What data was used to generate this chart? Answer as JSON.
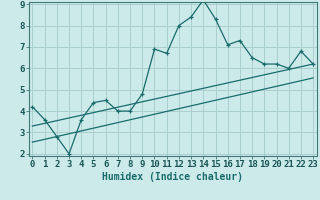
{
  "xlabel": "Humidex (Indice chaleur)",
  "bg_color": "#cceaea",
  "grid_color": "#aacece",
  "line_color": "#1a6b6b",
  "x_data": [
    0,
    1,
    2,
    3,
    4,
    5,
    6,
    7,
    8,
    9,
    10,
    11,
    12,
    13,
    14,
    15,
    16,
    17,
    18,
    19,
    20,
    21,
    22,
    23
  ],
  "y_jagged": [
    4.2,
    3.6,
    2.8,
    2.0,
    3.6,
    4.4,
    4.5,
    4.0,
    4.0,
    4.8,
    6.9,
    6.7,
    8.0,
    8.4,
    9.2,
    8.3,
    7.1,
    7.3,
    6.5,
    6.2,
    6.2,
    6.0,
    6.8,
    6.2
  ],
  "trend1_x": [
    0,
    23
  ],
  "trend1_y": [
    3.3,
    6.2
  ],
  "trend2_x": [
    0,
    23
  ],
  "trend2_y": [
    2.55,
    5.55
  ],
  "ylim": [
    1.9,
    9.1
  ],
  "xlim": [
    -0.3,
    23.3
  ],
  "yticks": [
    2,
    3,
    4,
    5,
    6,
    7,
    8,
    9
  ],
  "xticks": [
    0,
    1,
    2,
    3,
    4,
    5,
    6,
    7,
    8,
    9,
    10,
    11,
    12,
    13,
    14,
    15,
    16,
    17,
    18,
    19,
    20,
    21,
    22,
    23
  ],
  "xtick_labels": [
    "0",
    "1",
    "2",
    "3",
    "4",
    "5",
    "6",
    "7",
    "8",
    "9",
    "10",
    "11",
    "12",
    "13",
    "14",
    "15",
    "16",
    "17",
    "18",
    "19",
    "20",
    "21",
    "22",
    "23"
  ],
  "font_size": 6.5
}
